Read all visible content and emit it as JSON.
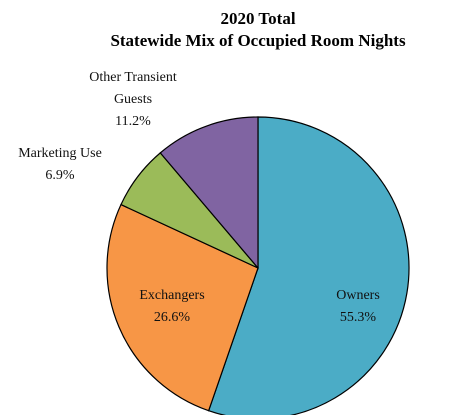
{
  "chart_data": {
    "type": "pie",
    "title": "2020 Total",
    "subtitle": "Statewide Mix of Occupied Room Nights",
    "categories": [
      "Owners",
      "Exchangers",
      "Marketing Use",
      "Other Transient Guests"
    ],
    "values": [
      55.3,
      26.6,
      6.9,
      11.2
    ],
    "value_labels": [
      "55.3%",
      "26.6%",
      "6.9%",
      "11.2%"
    ],
    "colors": [
      "#4bacc6",
      "#f79646",
      "#9bbb59",
      "#8064a2"
    ]
  }
}
